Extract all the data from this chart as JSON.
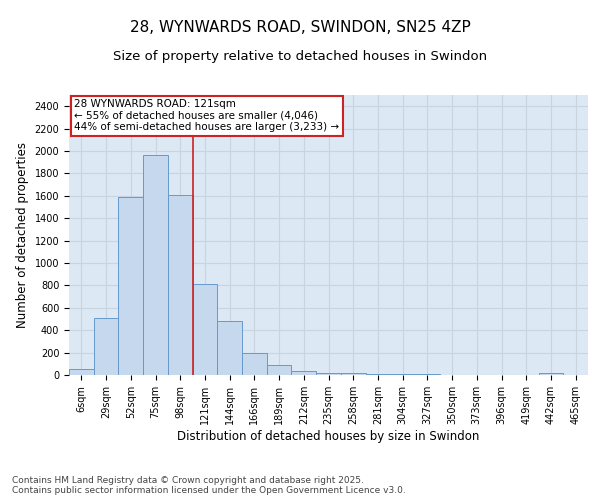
{
  "title": "28, WYNWARDS ROAD, SWINDON, SN25 4ZP",
  "subtitle": "Size of property relative to detached houses in Swindon",
  "xlabel": "Distribution of detached houses by size in Swindon",
  "ylabel": "Number of detached properties",
  "footer": "Contains HM Land Registry data © Crown copyright and database right 2025.\nContains public sector information licensed under the Open Government Licence v3.0.",
  "bar_labels": [
    "6sqm",
    "29sqm",
    "52sqm",
    "75sqm",
    "98sqm",
    "121sqm",
    "144sqm",
    "166sqm",
    "189sqm",
    "212sqm",
    "235sqm",
    "258sqm",
    "281sqm",
    "304sqm",
    "327sqm",
    "350sqm",
    "373sqm",
    "396sqm",
    "419sqm",
    "442sqm",
    "465sqm"
  ],
  "bar_values": [
    50,
    510,
    1590,
    1960,
    1610,
    810,
    480,
    200,
    90,
    40,
    20,
    15,
    10,
    5,
    5,
    3,
    2,
    0,
    0,
    20,
    0
  ],
  "bar_color": "#c5d8ee",
  "bar_edge_color": "#6699cc",
  "annotation_line_color": "#cc2222",
  "annotation_box_text": "28 WYNWARDS ROAD: 121sqm\n← 55% of detached houses are smaller (4,046)\n44% of semi-detached houses are larger (3,233) →",
  "ylim": [
    0,
    2500
  ],
  "yticks": [
    0,
    200,
    400,
    600,
    800,
    1000,
    1200,
    1400,
    1600,
    1800,
    2000,
    2200,
    2400
  ],
  "grid_color": "#c8d4e0",
  "background_color": "#dce8f4",
  "title_fontsize": 11,
  "subtitle_fontsize": 9.5,
  "ylabel_fontsize": 8.5,
  "xlabel_fontsize": 8.5,
  "tick_fontsize": 7,
  "annotation_fontsize": 7.5,
  "footer_fontsize": 6.5
}
